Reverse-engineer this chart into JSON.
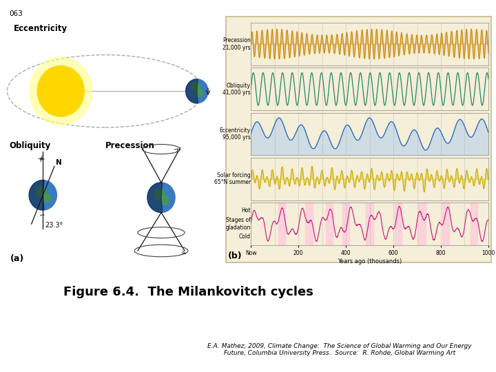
{
  "page_number": "063",
  "title": "Figure 6.4.  The Milankovitch cycles",
  "title_fontsize": 13,
  "title_fontweight": "bold",
  "attribution_line1": "E.A. Mathez, 2009, Climate Change:  The Science of Global Warming and Our Energy",
  "attribution_line2": "Future, Columbia University Press.  Source:  R. Rohde, Global Warming Art",
  "attribution_fontsize": 6.5,
  "label_a": "(a)",
  "label_b": "(b)",
  "label_fontsize": 9,
  "background_color": "#ffffff",
  "text_color": "#000000",
  "panel_bg": "#f5eed8",
  "border_color": "#c8b88a",
  "eccentricity_label": "Eccentricity",
  "obliquity_label": "Obliquity",
  "precession_label": "Precession",
  "angle_label": "23.3°",
  "north_label": "N",
  "sun_color": "#FFD700",
  "sun_glow_color": "#FFFF88",
  "earth_blue": "#3a7abf",
  "earth_green": "#4a9a4a",
  "orbit_color": "#999999",
  "arrow_color": "#333333",
  "graph_precession_label": "Precession\n21,000 yrs",
  "graph_obliquity_label": "Obliquity\n41,000 yrs",
  "graph_eccentricity_label": "Eccentricity\n95,000 yrs",
  "graph_solar_label": "Solar forcing\n65°N summer",
  "graph_hot_label": "Hot",
  "graph_stages_label": "Stages of\ngladation",
  "graph_cold_label": "Cold",
  "graph_now_label": "Now",
  "graph_xlabel": "Years ago (thousands)",
  "graph_xticks": [
    0,
    200,
    400,
    600,
    800,
    1000
  ],
  "graph_xtick_labels": [
    "Now",
    "200",
    "400",
    "600",
    "800",
    "1000"
  ],
  "prec_color": "#CC8800",
  "obli_color": "#228866",
  "ecce_color": "#2266BB",
  "solar_color": "#CCAA00",
  "glac_color": "#CC1177"
}
